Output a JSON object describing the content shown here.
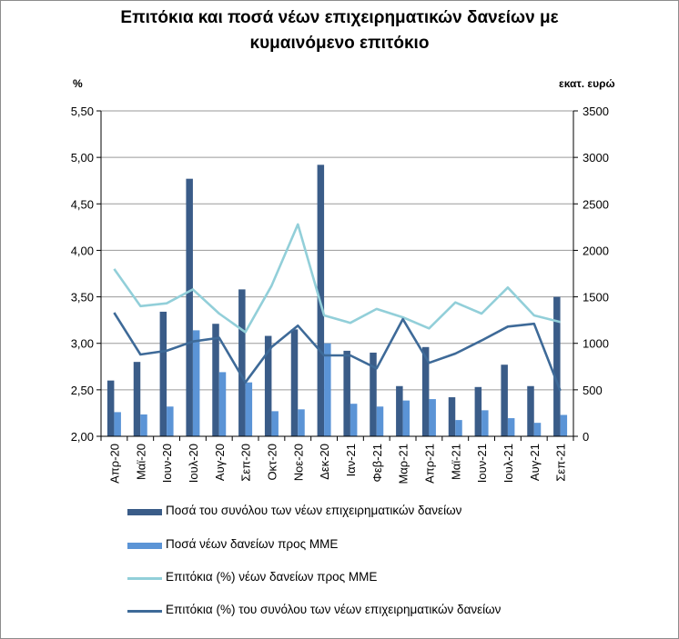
{
  "title_line1": "Επιτόκια και ποσά νέων επιχειρηματικών δανείων με",
  "title_line2": "κυμαινόμενο επιτόκιο",
  "colors": {
    "bar_total": "#3a5c88",
    "bar_sme": "#5b94d6",
    "line_sme": "#92cfd9",
    "line_total": "#3e6a98",
    "grid": "#9a9a9a"
  },
  "chart_data": {
    "type": "bar",
    "title": "Επιτόκια και ποσά νέων επιχειρηματικών δανείων με κυμαινόμενο επιτόκιο",
    "categories": [
      "Απρ-20",
      "Μαϊ-20",
      "Ιουν-20",
      "Ιουλ-20",
      "Αυγ-20",
      "Σεπ-20",
      "Οκτ-20",
      "Νοε-20",
      "Δεκ-20",
      "Ιαν-21",
      "Φεβ-21",
      "Μαρ-21",
      "Απρ-21",
      "Μαϊ-21",
      "Ιουν-21",
      "Ιουλ-21",
      "Αυγ-21",
      "Σεπ-21"
    ],
    "y_left": {
      "label": "%",
      "min": 2.0,
      "max": 5.5,
      "ticks": [
        "2,00",
        "2,50",
        "3,00",
        "3,50",
        "4,00",
        "4,50",
        "5,00",
        "5,50"
      ]
    },
    "y_right": {
      "label": "εκατ. ευρώ",
      "min": 0,
      "max": 3500,
      "ticks": [
        "0",
        "500",
        "1000",
        "1500",
        "2000",
        "2500",
        "3000",
        "3500"
      ]
    },
    "series": [
      {
        "name": "Ποσά του συνόλου των νέων επιχειρηματικών δανείων",
        "kind": "bar",
        "axis": "right",
        "values": [
          600,
          800,
          1340,
          2770,
          1210,
          1580,
          1080,
          1150,
          2920,
          920,
          900,
          540,
          960,
          420,
          530,
          770,
          540,
          1500
        ]
      },
      {
        "name": "Ποσά νέων δανείων προς ΜΜΕ",
        "kind": "bar",
        "axis": "right",
        "values": [
          260,
          235,
          320,
          1140,
          690,
          580,
          270,
          290,
          1000,
          350,
          320,
          385,
          400,
          175,
          280,
          195,
          145,
          230
        ]
      },
      {
        "name": "Επιτόκια (%) νέων δανείων προς ΜΜΕ",
        "kind": "line",
        "axis": "left",
        "values": [
          3.8,
          3.4,
          3.43,
          3.58,
          3.32,
          3.12,
          3.62,
          4.28,
          3.3,
          3.22,
          3.37,
          3.28,
          3.16,
          3.44,
          3.32,
          3.6,
          3.3,
          3.23
        ]
      },
      {
        "name": "Επιτόκια (%) του συνόλου των νέων επιχειρηματικών δανείων",
        "kind": "line",
        "axis": "left",
        "values": [
          3.33,
          2.88,
          2.92,
          3.02,
          3.06,
          2.58,
          2.96,
          3.19,
          2.87,
          2.87,
          2.73,
          3.26,
          2.79,
          2.89,
          3.03,
          3.18,
          3.21,
          2.49
        ]
      }
    ]
  }
}
